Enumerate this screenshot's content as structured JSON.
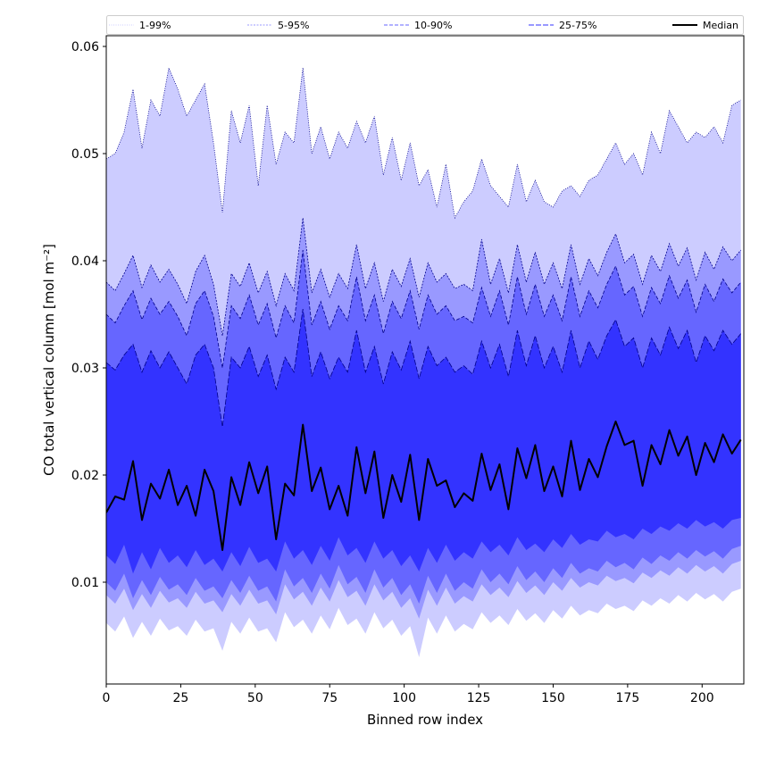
{
  "chart_data": {
    "type": "area",
    "title": "",
    "xlabel": "Binned row index",
    "ylabel": "CO total vertical column [mol m⁻²]",
    "xlim": [
      0,
      214
    ],
    "ylim": [
      0.0005,
      0.061
    ],
    "grid": false,
    "legend_position": "top",
    "xticks": [
      0,
      25,
      50,
      75,
      100,
      125,
      150,
      175,
      200
    ],
    "xtick_labels": [
      "0",
      "25",
      "50",
      "75",
      "100",
      "125",
      "150",
      "175",
      "200"
    ],
    "yticks": [
      0.01,
      0.02,
      0.03,
      0.04,
      0.05,
      0.06
    ],
    "ytick_labels": [
      "0.01",
      "0.02",
      "0.03",
      "0.04",
      "0.05",
      "0.06"
    ],
    "x": [
      0,
      3,
      6,
      9,
      12,
      15,
      18,
      21,
      24,
      27,
      30,
      33,
      36,
      39,
      42,
      45,
      48,
      51,
      54,
      57,
      60,
      63,
      66,
      69,
      72,
      75,
      78,
      81,
      84,
      87,
      90,
      93,
      96,
      99,
      102,
      105,
      108,
      111,
      114,
      117,
      120,
      123,
      126,
      129,
      132,
      135,
      138,
      141,
      144,
      147,
      150,
      153,
      156,
      159,
      162,
      165,
      168,
      171,
      174,
      177,
      180,
      183,
      186,
      189,
      192,
      195,
      198,
      201,
      204,
      207,
      210,
      213
    ],
    "series": [
      {
        "name": "Median",
        "role": "median",
        "values": [
          0.0165,
          0.018,
          0.0177,
          0.0213,
          0.0158,
          0.0192,
          0.0178,
          0.0205,
          0.0172,
          0.019,
          0.0162,
          0.0205,
          0.0185,
          0.013,
          0.0198,
          0.0172,
          0.0212,
          0.0183,
          0.0208,
          0.014,
          0.0192,
          0.0181,
          0.0247,
          0.0185,
          0.0207,
          0.0168,
          0.019,
          0.0162,
          0.0226,
          0.0183,
          0.0222,
          0.016,
          0.02,
          0.0175,
          0.0219,
          0.0158,
          0.0215,
          0.019,
          0.0195,
          0.017,
          0.0183,
          0.0176,
          0.022,
          0.0186,
          0.021,
          0.0168,
          0.0225,
          0.0197,
          0.0228,
          0.0185,
          0.0208,
          0.018,
          0.0232,
          0.0186,
          0.0215,
          0.0198,
          0.0227,
          0.025,
          0.0228,
          0.0232,
          0.019,
          0.0228,
          0.021,
          0.0242,
          0.0218,
          0.0236,
          0.02,
          0.023,
          0.0212,
          0.0238,
          0.022,
          0.0233
        ]
      },
      {
        "name": "25-75%",
        "role": "lower",
        "values": [
          0.0125,
          0.0117,
          0.0135,
          0.0108,
          0.0128,
          0.0112,
          0.0132,
          0.0118,
          0.0125,
          0.0114,
          0.013,
          0.0116,
          0.0122,
          0.011,
          0.0128,
          0.0115,
          0.0133,
          0.0118,
          0.0122,
          0.011,
          0.0138,
          0.0122,
          0.013,
          0.0116,
          0.0134,
          0.012,
          0.0142,
          0.0125,
          0.0132,
          0.0118,
          0.0138,
          0.0122,
          0.013,
          0.0115,
          0.0125,
          0.011,
          0.0132,
          0.0118,
          0.0135,
          0.012,
          0.0128,
          0.0122,
          0.0138,
          0.0128,
          0.0135,
          0.0125,
          0.0142,
          0.013,
          0.0136,
          0.0128,
          0.014,
          0.0132,
          0.0145,
          0.0135,
          0.014,
          0.0138,
          0.0148,
          0.0142,
          0.0145,
          0.014,
          0.015,
          0.0145,
          0.0152,
          0.0148,
          0.0155,
          0.015,
          0.0158,
          0.0152,
          0.0156,
          0.015,
          0.0158,
          0.016
        ]
      },
      {
        "name": "25-75%",
        "role": "upper",
        "values": [
          0.0305,
          0.0298,
          0.0312,
          0.0322,
          0.0296,
          0.0316,
          0.03,
          0.0315,
          0.03,
          0.0285,
          0.0312,
          0.0322,
          0.03,
          0.0245,
          0.031,
          0.03,
          0.032,
          0.0292,
          0.0312,
          0.028,
          0.031,
          0.0296,
          0.0355,
          0.0292,
          0.0315,
          0.029,
          0.031,
          0.0296,
          0.0335,
          0.0296,
          0.032,
          0.0285,
          0.0315,
          0.0298,
          0.0325,
          0.029,
          0.032,
          0.0302,
          0.031,
          0.0296,
          0.0302,
          0.0294,
          0.0325,
          0.03,
          0.0322,
          0.0292,
          0.0335,
          0.0302,
          0.033,
          0.03,
          0.032,
          0.0296,
          0.0335,
          0.03,
          0.0325,
          0.0308,
          0.033,
          0.0345,
          0.032,
          0.0328,
          0.03,
          0.0328,
          0.0312,
          0.0338,
          0.0318,
          0.0335,
          0.0305,
          0.033,
          0.0316,
          0.0335,
          0.0322,
          0.0332
        ]
      },
      {
        "name": "10-90%",
        "role": "lower",
        "values": [
          0.01,
          0.0092,
          0.0108,
          0.0085,
          0.0102,
          0.0088,
          0.0105,
          0.0093,
          0.0098,
          0.0088,
          0.0104,
          0.0092,
          0.0096,
          0.0085,
          0.0102,
          0.009,
          0.0106,
          0.0092,
          0.0096,
          0.0082,
          0.0112,
          0.0096,
          0.0104,
          0.009,
          0.0108,
          0.0094,
          0.0116,
          0.0098,
          0.0105,
          0.009,
          0.0112,
          0.0095,
          0.0104,
          0.0088,
          0.0098,
          0.008,
          0.0106,
          0.009,
          0.0108,
          0.0092,
          0.01,
          0.0094,
          0.0112,
          0.01,
          0.0108,
          0.0098,
          0.0115,
          0.0102,
          0.011,
          0.01,
          0.0113,
          0.0104,
          0.0118,
          0.0108,
          0.0113,
          0.011,
          0.012,
          0.0114,
          0.0118,
          0.0112,
          0.0123,
          0.0117,
          0.0125,
          0.012,
          0.0128,
          0.0122,
          0.013,
          0.0124,
          0.0129,
          0.0122,
          0.0131,
          0.0134
        ]
      },
      {
        "name": "10-90%",
        "role": "upper",
        "values": [
          0.035,
          0.0342,
          0.0358,
          0.0372,
          0.0345,
          0.0365,
          0.035,
          0.0362,
          0.0348,
          0.033,
          0.036,
          0.0372,
          0.0348,
          0.03,
          0.0358,
          0.0346,
          0.0368,
          0.034,
          0.036,
          0.0328,
          0.0358,
          0.0342,
          0.041,
          0.034,
          0.0362,
          0.0336,
          0.0358,
          0.0344,
          0.0385,
          0.0344,
          0.0368,
          0.0332,
          0.0362,
          0.0346,
          0.0372,
          0.0336,
          0.0368,
          0.035,
          0.0358,
          0.0344,
          0.0348,
          0.0342,
          0.0375,
          0.0348,
          0.0372,
          0.034,
          0.0385,
          0.035,
          0.0378,
          0.0348,
          0.0368,
          0.0344,
          0.0385,
          0.0348,
          0.0372,
          0.0356,
          0.0378,
          0.0395,
          0.0368,
          0.0376,
          0.0348,
          0.0375,
          0.036,
          0.0386,
          0.0365,
          0.0382,
          0.0352,
          0.0378,
          0.0362,
          0.0383,
          0.037,
          0.038
        ]
      },
      {
        "name": "5-95%",
        "role": "lower",
        "values": [
          0.0088,
          0.008,
          0.0094,
          0.0074,
          0.0089,
          0.0076,
          0.0092,
          0.0081,
          0.0085,
          0.0076,
          0.0091,
          0.008,
          0.0083,
          0.0072,
          0.0089,
          0.0078,
          0.0093,
          0.008,
          0.0083,
          0.007,
          0.0098,
          0.0084,
          0.0091,
          0.0078,
          0.0095,
          0.0082,
          0.0102,
          0.0086,
          0.0092,
          0.0078,
          0.0098,
          0.0083,
          0.0091,
          0.0076,
          0.0085,
          0.0066,
          0.0093,
          0.0078,
          0.0095,
          0.008,
          0.0087,
          0.0082,
          0.0098,
          0.0088,
          0.0095,
          0.0086,
          0.0101,
          0.009,
          0.0097,
          0.0088,
          0.01,
          0.0092,
          0.0104,
          0.0095,
          0.01,
          0.0097,
          0.0106,
          0.0101,
          0.0104,
          0.0099,
          0.0109,
          0.0104,
          0.0111,
          0.0106,
          0.0114,
          0.0108,
          0.0116,
          0.011,
          0.0115,
          0.0108,
          0.0117,
          0.012
        ]
      },
      {
        "name": "5-95%",
        "role": "upper",
        "values": [
          0.038,
          0.0372,
          0.0388,
          0.0405,
          0.0375,
          0.0396,
          0.038,
          0.0392,
          0.0378,
          0.036,
          0.039,
          0.0405,
          0.0378,
          0.033,
          0.0388,
          0.0376,
          0.0398,
          0.037,
          0.039,
          0.0358,
          0.0388,
          0.0372,
          0.044,
          0.037,
          0.0392,
          0.0366,
          0.0388,
          0.0374,
          0.0415,
          0.0374,
          0.0398,
          0.0362,
          0.0392,
          0.0376,
          0.0402,
          0.0366,
          0.0398,
          0.038,
          0.0388,
          0.0374,
          0.0378,
          0.0372,
          0.042,
          0.0378,
          0.0402,
          0.037,
          0.0415,
          0.038,
          0.0408,
          0.0378,
          0.0398,
          0.0374,
          0.0415,
          0.0378,
          0.0402,
          0.0386,
          0.0408,
          0.0425,
          0.0398,
          0.0406,
          0.0378,
          0.0405,
          0.039,
          0.0416,
          0.0395,
          0.0412,
          0.0382,
          0.0408,
          0.0392,
          0.0413,
          0.04,
          0.041
        ]
      },
      {
        "name": "1-99%",
        "role": "lower",
        "values": [
          0.0062,
          0.0054,
          0.0068,
          0.0048,
          0.0063,
          0.005,
          0.0066,
          0.0055,
          0.0059,
          0.005,
          0.0065,
          0.0054,
          0.0057,
          0.0036,
          0.0063,
          0.0052,
          0.0067,
          0.0054,
          0.0057,
          0.0044,
          0.0072,
          0.0058,
          0.0065,
          0.0052,
          0.0069,
          0.0056,
          0.0076,
          0.006,
          0.0066,
          0.0052,
          0.0072,
          0.0057,
          0.0065,
          0.005,
          0.0059,
          0.003,
          0.0067,
          0.0052,
          0.0069,
          0.0054,
          0.0061,
          0.0056,
          0.0072,
          0.0062,
          0.0069,
          0.006,
          0.0075,
          0.0064,
          0.0071,
          0.0062,
          0.0074,
          0.0066,
          0.0078,
          0.0069,
          0.0074,
          0.0071,
          0.008,
          0.0075,
          0.0078,
          0.0073,
          0.0083,
          0.0078,
          0.0085,
          0.008,
          0.0088,
          0.0082,
          0.009,
          0.0084,
          0.0089,
          0.0082,
          0.0091,
          0.0094
        ]
      },
      {
        "name": "1-99%",
        "role": "upper",
        "values": [
          0.0495,
          0.05,
          0.052,
          0.056,
          0.0505,
          0.055,
          0.0535,
          0.058,
          0.056,
          0.0535,
          0.055,
          0.0565,
          0.051,
          0.0445,
          0.054,
          0.051,
          0.0545,
          0.047,
          0.0545,
          0.049,
          0.052,
          0.051,
          0.058,
          0.05,
          0.0525,
          0.0495,
          0.052,
          0.0505,
          0.053,
          0.051,
          0.0535,
          0.048,
          0.0515,
          0.0475,
          0.051,
          0.047,
          0.0485,
          0.045,
          0.049,
          0.044,
          0.0455,
          0.0465,
          0.0495,
          0.047,
          0.046,
          0.045,
          0.049,
          0.0455,
          0.0475,
          0.0455,
          0.045,
          0.0465,
          0.047,
          0.046,
          0.0475,
          0.048,
          0.0495,
          0.051,
          0.049,
          0.05,
          0.048,
          0.052,
          0.05,
          0.054,
          0.0525,
          0.051,
          0.052,
          0.0515,
          0.0525,
          0.051,
          0.0545,
          0.055
        ]
      }
    ],
    "legend": [
      {
        "label": "1-99%",
        "band": "1-99%"
      },
      {
        "label": "5-95%",
        "band": "5-95%"
      },
      {
        "label": "10-90%",
        "band": "10-90%"
      },
      {
        "label": "25-75%",
        "band": "25-75%"
      },
      {
        "label": "Median",
        "band": "Median"
      }
    ],
    "colors": {
      "1-99%": "#ccccff",
      "5-95%": "#9999ff",
      "10-90%": "#6666ff",
      "25-75%": "#3333ff",
      "Median": "#000000",
      "edge": "#00008b"
    }
  }
}
